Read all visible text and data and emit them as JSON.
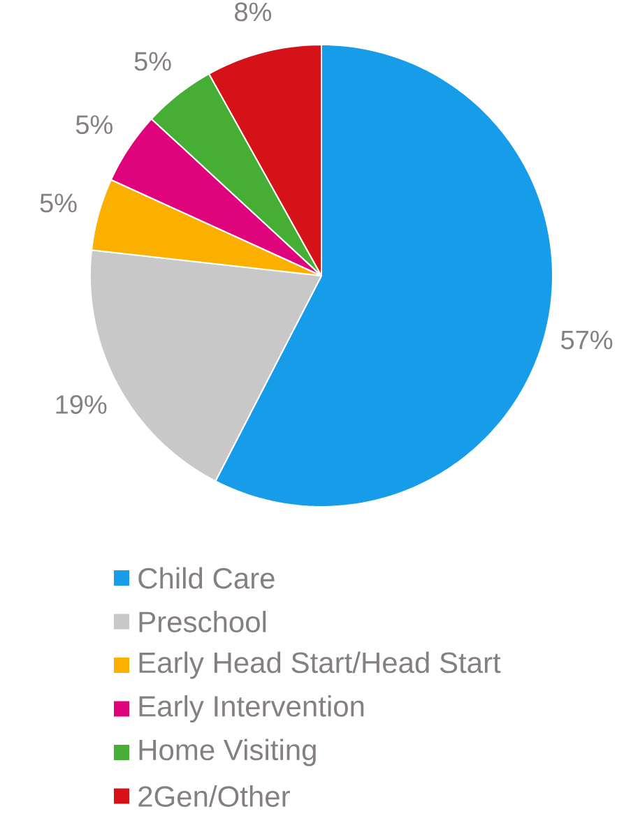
{
  "chart_data": {
    "type": "pie",
    "categories": [
      "Child Care",
      "Preschool",
      "Early Head Start/Head Start",
      "Early Intervention",
      "Home Visiting",
      "2Gen/Other"
    ],
    "values": [
      57,
      19,
      5,
      5,
      5,
      8
    ],
    "value_labels": [
      "57%",
      "19%",
      "5%",
      "5%",
      "5%",
      "8%"
    ],
    "colors": [
      "#179cea",
      "#c8c8c8",
      "#fbb000",
      "#e0047c",
      "#46ad35",
      "#d41217"
    ],
    "legend": "bottom"
  }
}
